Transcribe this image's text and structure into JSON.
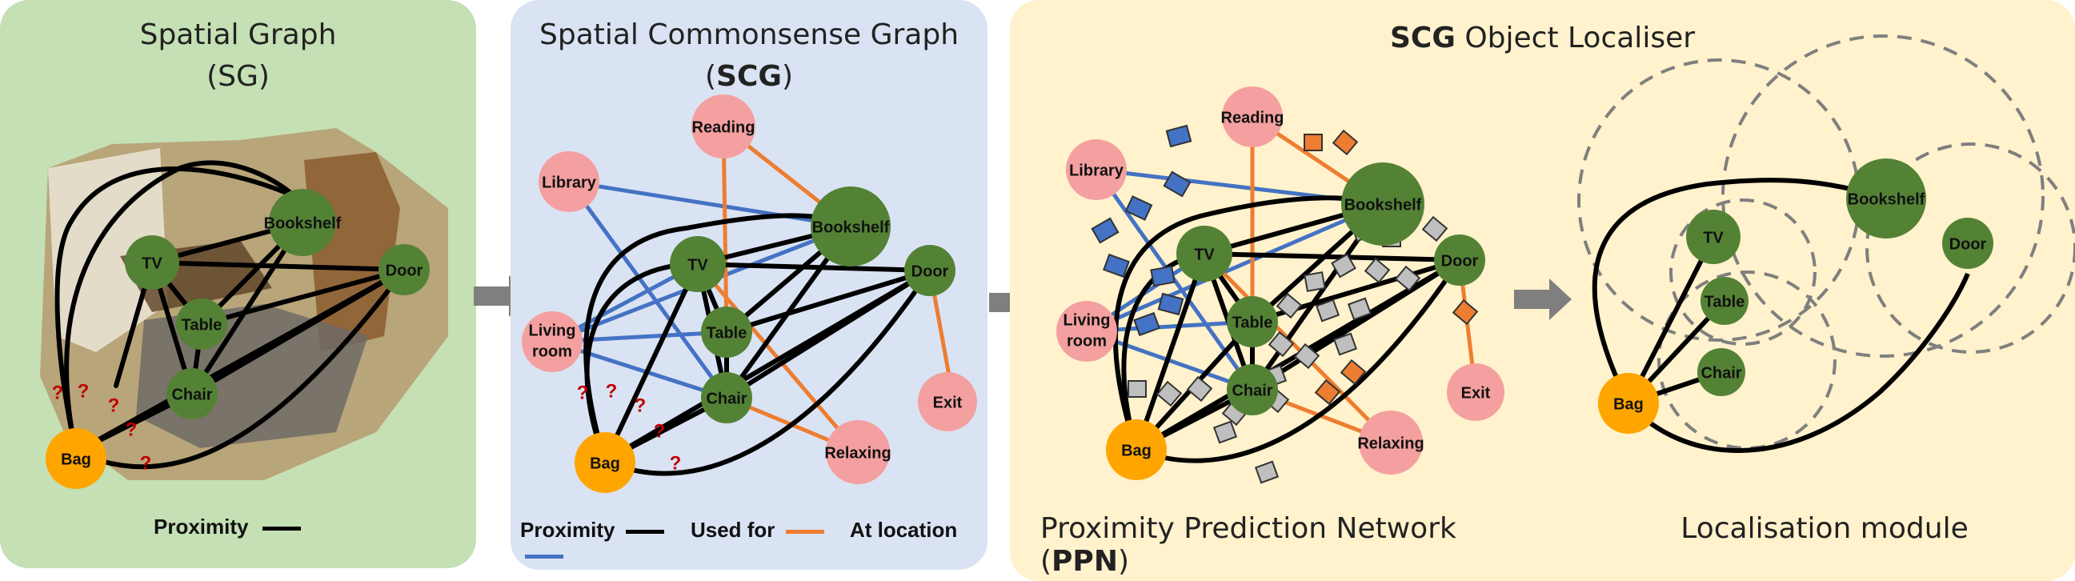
{
  "panels": {
    "sg": {
      "title_line1": "Spatial Graph",
      "title_line2": "(SG)",
      "legend_proximity": "Proximity",
      "nodes": {
        "bookshelf": "Bookshelf",
        "tv": "TV",
        "door": "Door",
        "table": "Table",
        "chair": "Chair",
        "bag": "Bag"
      },
      "question_mark": "?"
    },
    "scg": {
      "title_line1": "Spatial Commonsense Graph",
      "title_open": "(",
      "title_bold": "SCG",
      "title_close": ")",
      "legend_proximity": "Proximity",
      "legend_used_for": "Used for",
      "legend_at_location": "At location",
      "nodes": {
        "reading": "Reading",
        "library": "Library",
        "bookshelf": "Bookshelf",
        "tv": "TV",
        "door": "Door",
        "living_room_1": "Living",
        "living_room_2": "room",
        "table": "Table",
        "chair": "Chair",
        "exit": "Exit",
        "bag": "Bag",
        "relaxing": "Relaxing"
      },
      "question_mark": "?"
    },
    "localiser": {
      "title_bold": "SCG",
      "title_rest": " Object Localiser",
      "ppn_caption_pre": "Proximity Prediction Network (",
      "ppn_caption_bold": "PPN",
      "ppn_caption_post": ")",
      "loc_caption": "Localisation module",
      "ppn_nodes": {
        "reading": "Reading",
        "library": "Library",
        "bookshelf": "Bookshelf",
        "tv": "TV",
        "door": "Door",
        "living_room_1": "Living",
        "living_room_2": "room",
        "table": "Table",
        "chair": "Chair",
        "exit": "Exit",
        "bag": "Bag",
        "relaxing": "Relaxing"
      },
      "loc_nodes": {
        "bookshelf": "Bookshelf",
        "tv": "TV",
        "door": "Door",
        "table": "Table",
        "chair": "Chair",
        "bag": "Bag"
      }
    }
  },
  "colors": {
    "sg_bg": "#c5e0b4",
    "scg_bg": "#dae3f3",
    "loc_bg": "#fff2cc",
    "object_node": "#548235",
    "query_node": "#ffa500",
    "concept_node": "#f4a0a0",
    "proximity_edge": "#000000",
    "used_for_edge": "#ed7d31",
    "at_location_edge": "#4472c4",
    "arrow": "#7f7f7f",
    "question": "#c00000"
  }
}
